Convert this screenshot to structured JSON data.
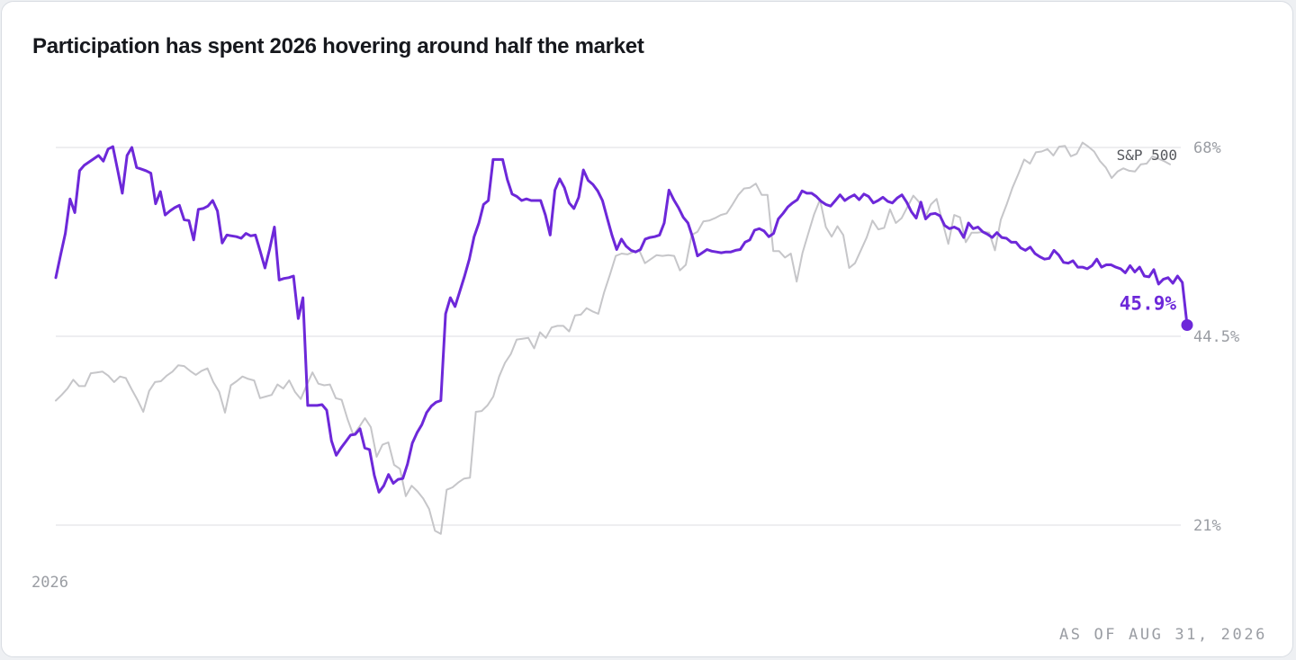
{
  "title": "Participation has spent 2026 hovering around half the market",
  "as_of": "AS OF AUG 31, 2026",
  "colors": {
    "participation": "#6d28d9",
    "sp500": "#c6c6c9",
    "grid": "#e3e4e8",
    "tick_text": "#9a9da3"
  },
  "chart_data": {
    "type": "line",
    "title": "Participation has spent 2026 hovering around half the market",
    "x_tick_labels": [
      "2026"
    ],
    "y_ticks": [
      {
        "value": 21,
        "label": "21%"
      },
      {
        "value": 44.5,
        "label": "44.5%"
      },
      {
        "value": 68,
        "label": "68%"
      }
    ],
    "ylim": [
      21,
      68
    ],
    "grid": true,
    "series": [
      {
        "name": "S&P 500",
        "role": "benchmark",
        "values": [
          36.5,
          37.2,
          38,
          39.1,
          38.3,
          38.3,
          39.9,
          40,
          40.1,
          39.6,
          38.8,
          39.5,
          39.3,
          37.9,
          36.6,
          35.1,
          37.7,
          38.8,
          38.9,
          39.6,
          40.1,
          40.9,
          40.8,
          40.2,
          39.7,
          40.2,
          40.5,
          38.8,
          37.6,
          35,
          38.4,
          38.9,
          39.5,
          39.2,
          39,
          36.8,
          37,
          37.2,
          38.5,
          38,
          39,
          37.6,
          36.7,
          38.4,
          40,
          38.6,
          38.4,
          38.5,
          36.8,
          36.6,
          34.2,
          32.2,
          33.2,
          34.3,
          33.2,
          29.5,
          31,
          31.3,
          28.5,
          28,
          24.6,
          25.9,
          25.2,
          24.3,
          23,
          20.3,
          19.9,
          25.4,
          25.7,
          26.3,
          26.8,
          26.9,
          35.1,
          35.2,
          35.9,
          37,
          39.5,
          41.2,
          42.3,
          44.1,
          44.2,
          44.3,
          43,
          45,
          44.3,
          45.6,
          45.8,
          45.8,
          45.1,
          47.1,
          47.2,
          48,
          47.6,
          47.3,
          50,
          52.2,
          54.5,
          54.8,
          54.7,
          55,
          55.2,
          53.6,
          54.1,
          54.6,
          54.5,
          54.6,
          54.5,
          52.7,
          53.4,
          57.1,
          57.5,
          58.8,
          58.9,
          59.2,
          59.6,
          59.8,
          60.9,
          62.1,
          62.9,
          63,
          63.5,
          62.1,
          62.1,
          55.1,
          55.1,
          54.3,
          54.8,
          51.3,
          54.9,
          57.3,
          59.7,
          61.5,
          58.1,
          56.9,
          58.2,
          57.1,
          53,
          53.6,
          55.2,
          56.8,
          58.9,
          57.8,
          58,
          60.3,
          58.6,
          59.2,
          60.6,
          62,
          61.2,
          59.2,
          60.9,
          61.6,
          58.7,
          56,
          59.6,
          59.3,
          56.2,
          57.4,
          57.4,
          57.5,
          57.4,
          55.2,
          59,
          60.9,
          63,
          64.7,
          66.5,
          66,
          67.4,
          67.5,
          67.8,
          67,
          68.1,
          68.2,
          66.9,
          67.2,
          68.6,
          68.1,
          67.5,
          66.3,
          65.5,
          64.2,
          65,
          65.4,
          65.1,
          65,
          65.9,
          66,
          66.9,
          66.6,
          66.3,
          65.9
        ]
      },
      {
        "name": "Participation",
        "role": "primary",
        "end_label": "45.9%",
        "values": [
          51.8,
          54.6,
          57.3,
          61.6,
          59.9,
          65.1,
          65.8,
          66.2,
          66.6,
          67,
          66.3,
          67.8,
          68.1,
          65.2,
          62.3,
          67,
          68,
          65.5,
          65.3,
          65.1,
          64.8,
          61,
          62.5,
          59.6,
          60.1,
          60.5,
          60.8,
          59,
          58.9,
          56.5,
          60.3,
          60.4,
          60.7,
          61.4,
          60.1,
          56.1,
          57.1,
          57,
          56.9,
          56.7,
          57.3,
          57,
          57.1,
          55.1,
          53,
          55.4,
          58.1,
          51.5,
          51.7,
          51.8,
          52,
          46.7,
          49.3,
          35.9,
          35.9,
          35.9,
          36,
          35.3,
          31.5,
          29.7,
          30.6,
          31.4,
          32.2,
          32.3,
          33,
          30.6,
          30.4,
          27.2,
          25.1,
          25.9,
          27.3,
          26.2,
          26.7,
          26.8,
          28.6,
          31.2,
          32.5,
          33.5,
          35,
          35.8,
          36.3,
          36.5,
          47.3,
          49.3,
          48.2,
          50.1,
          52,
          54.1,
          56.9,
          58.6,
          60.9,
          61.4,
          66.5,
          66.5,
          66.5,
          64,
          62.2,
          61.9,
          61.4,
          61.6,
          61.4,
          61.4,
          61.4,
          59.6,
          57.1,
          62.7,
          64.1,
          63,
          61.1,
          60.4,
          61.8,
          65.2,
          63.9,
          63.4,
          62.6,
          61.4,
          59.2,
          57.1,
          55.3,
          56.6,
          55.7,
          55.2,
          55,
          55.3,
          56.6,
          56.8,
          56.9,
          57.1,
          58.6,
          62.7,
          61.5,
          60.5,
          59.3,
          58.6,
          56.8,
          54.5,
          54.9,
          55.3,
          55.1,
          55,
          54.9,
          55,
          55,
          55.2,
          55.3,
          56.2,
          56.5,
          57.7,
          57.9,
          57.6,
          56.9,
          57.3,
          59.1,
          59.8,
          60.6,
          61.1,
          61.5,
          62.6,
          62.3,
          62.3,
          61.9,
          61.3,
          60.9,
          60.7,
          61.4,
          62.1,
          61.4,
          61.8,
          62.1,
          61.5,
          62.2,
          61.9,
          61.1,
          61.4,
          61.8,
          61.3,
          61.1,
          61.7,
          62.1,
          61.2,
          60,
          59.2,
          61.2,
          59.1,
          59.7,
          59.8,
          59.5,
          58.3,
          57.9,
          58.1,
          57.8,
          56.8,
          58.6,
          57.9,
          58.1,
          57.5,
          57.2,
          56.8,
          57.4,
          56.8,
          56.7,
          56.2,
          56.2,
          55.5,
          55.2,
          55.6,
          54.8,
          54.4,
          54.1,
          54.2,
          55.2,
          54.6,
          53.7,
          53.6,
          53.9,
          53.1,
          53.1,
          52.9,
          53.3,
          54.1,
          53.1,
          53.4,
          53.4,
          53.1,
          52.9,
          52.4,
          53.3,
          52.5,
          53.1,
          52,
          51.9,
          52.8,
          51,
          51.6,
          51.8,
          51.1,
          52,
          51.2,
          45.9
        ]
      }
    ]
  }
}
